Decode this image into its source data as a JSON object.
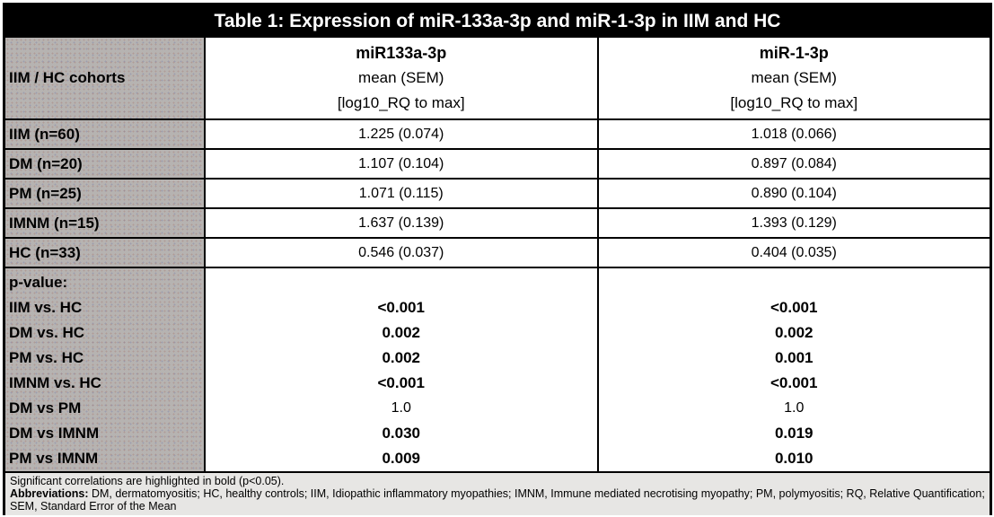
{
  "title": "Table 1: Expression of miR-133a-3p and miR-1-3p in IIM and HC",
  "header": {
    "row_label": "IIM / HC cohorts",
    "columns": [
      {
        "name": "miR133a-3p",
        "line2": "mean (SEM)",
        "line3": "[log10_RQ to max]"
      },
      {
        "name": "miR-1-3p",
        "line2": "mean (SEM)",
        "line3": "[log10_RQ to max]"
      }
    ]
  },
  "rows": [
    {
      "label": "IIM (n=60)",
      "mir133a": "1.225 (0.074)",
      "mir1": "1.018 (0.066)"
    },
    {
      "label": "DM (n=20)",
      "mir133a": "1.107 (0.104)",
      "mir1": "0.897 (0.084)"
    },
    {
      "label": "PM (n=25)",
      "mir133a": "1.071 (0.115)",
      "mir1": "0.890 (0.104)"
    },
    {
      "label": "IMNM (n=15)",
      "mir133a": "1.637 (0.139)",
      "mir1": "1.393 (0.129)"
    },
    {
      "label": "HC (n=33)",
      "mir133a": "0.546 (0.037)",
      "mir1": "0.404 (0.035)"
    }
  ],
  "pvalues": {
    "header": "p-value:",
    "comparisons": [
      {
        "label": "IIM vs. HC",
        "mir133a": "<0.001",
        "mir1": "<0.001",
        "significant": true
      },
      {
        "label": "DM vs. HC",
        "mir133a": "0.002",
        "mir1": "0.002",
        "significant": true
      },
      {
        "label": "PM vs. HC",
        "mir133a": "0.002",
        "mir1": "0.001",
        "significant": true
      },
      {
        "label": "IMNM vs. HC",
        "mir133a": "<0.001",
        "mir1": "<0.001",
        "significant": true
      },
      {
        "label": "DM vs PM",
        "mir133a": "1.0",
        "mir1": "1.0",
        "significant": false
      },
      {
        "label": "DM vs IMNM",
        "mir133a": "0.030",
        "mir1": "0.019",
        "significant": true
      },
      {
        "label": "PM vs IMNM",
        "mir133a": "0.009",
        "mir1": "0.010",
        "significant": true
      }
    ]
  },
  "footnotes": {
    "line1": "Significant correlations are highlighted in bold (p<0.05).",
    "abbr_label": "Abbreviations:",
    "abbr_text": " DM, dermatomyositis; HC, healthy controls; IIM, Idiopathic inflammatory myopathies;  IMNM, Immune mediated necrotising myopathy; PM, polymyositis; RQ, Relative Quantification; SEM, Standard Error of the Mean"
  },
  "colors": {
    "title_bg": "#000000",
    "title_fg": "#ffffff",
    "header_bg": "#b6b3b1",
    "cell_bg": "#ffffff",
    "footer_bg": "#e7e6e4",
    "border": "#000000"
  }
}
